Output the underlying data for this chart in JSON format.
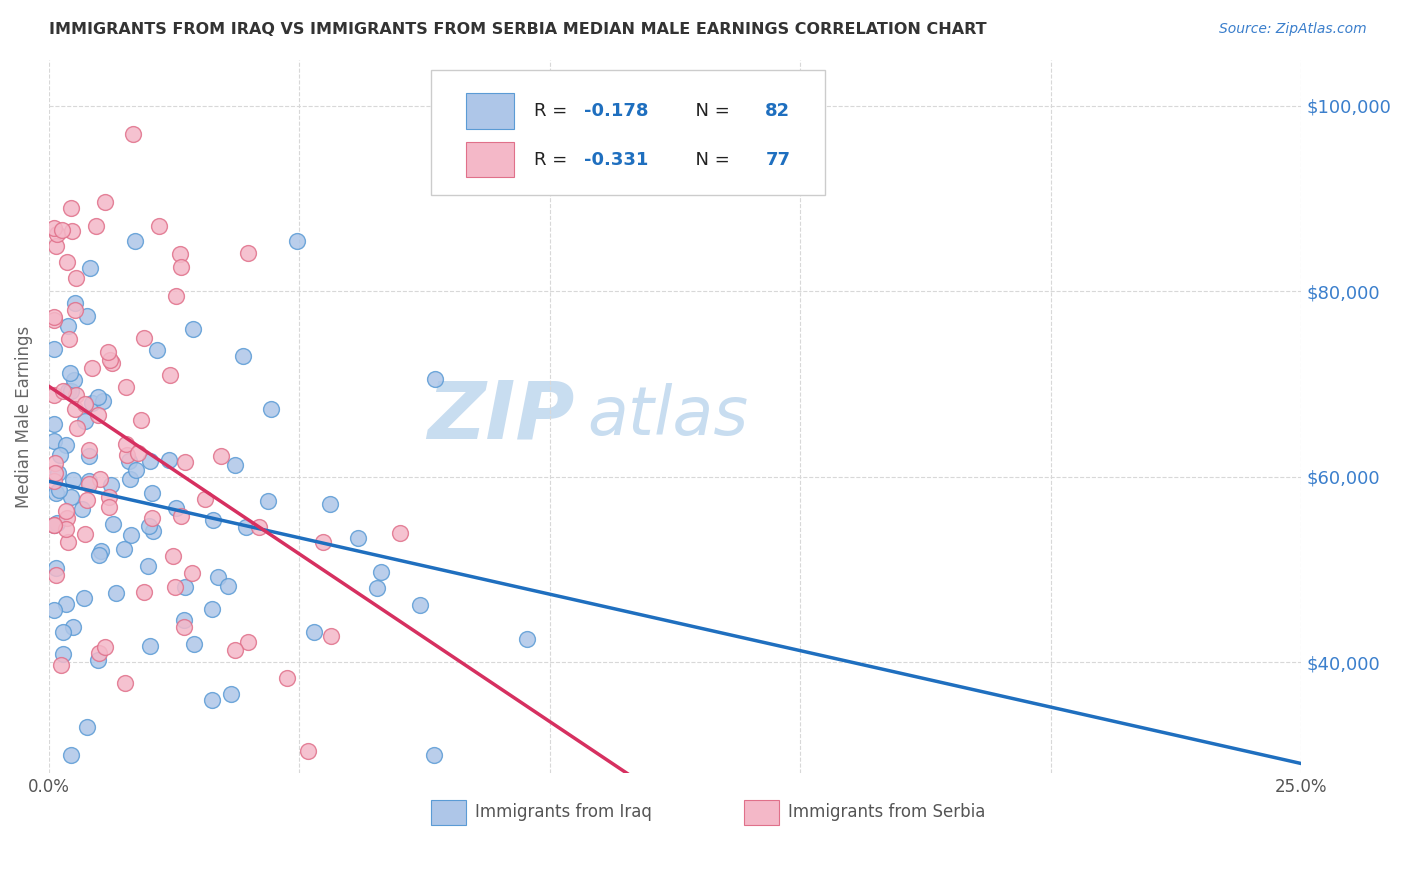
{
  "title": "IMMIGRANTS FROM IRAQ VS IMMIGRANTS FROM SERBIA MEDIAN MALE EARNINGS CORRELATION CHART",
  "source": "Source: ZipAtlas.com",
  "ylabel": "Median Male Earnings",
  "yticks": [
    40000,
    60000,
    80000,
    100000
  ],
  "ytick_labels": [
    "$40,000",
    "$60,000",
    "$80,000",
    "$100,000"
  ],
  "xlim": [
    0.0,
    0.25
  ],
  "ylim": [
    28000,
    105000
  ],
  "legend_iraq_R": "-0.178",
  "legend_iraq_N": "82",
  "legend_serbia_R": "-0.331",
  "legend_serbia_N": "77",
  "iraq_color": "#aec6e8",
  "iraq_edge": "#5b9bd5",
  "iraq_line": "#1f6fbf",
  "serbia_color": "#f4b8c8",
  "serbia_edge": "#e0708a",
  "serbia_line": "#d63060",
  "watermark_zip_color": "#c8ddf0",
  "watermark_atlas_color": "#c8ddf0",
  "grid_color": "#d8d8d8",
  "title_color": "#333333",
  "source_color": "#3b7fcc",
  "ytick_color": "#3b7fcc",
  "ylabel_color": "#666666"
}
